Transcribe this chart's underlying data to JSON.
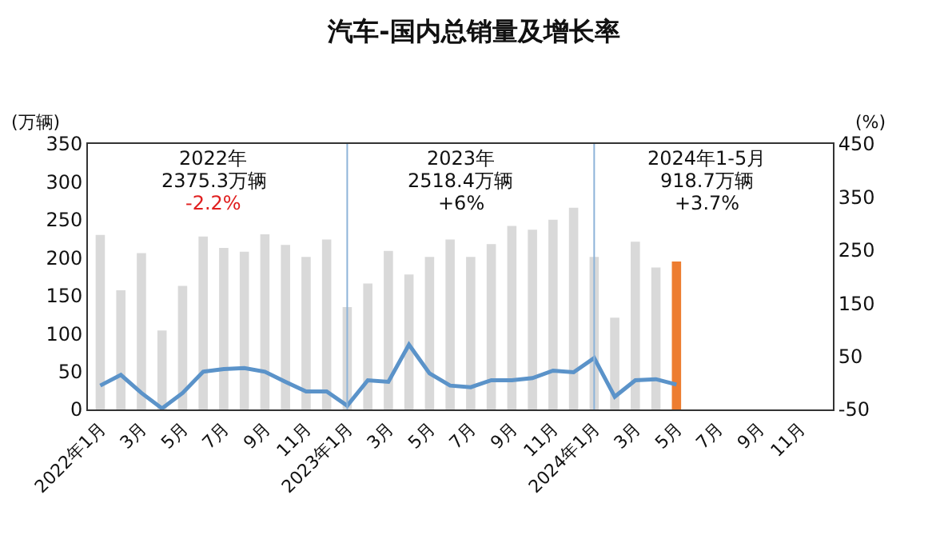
{
  "chart_data": {
    "type": "bar",
    "title": "汽车-国内总销量及增长率",
    "ylabel": "(万辆)",
    "y2label": "(%)",
    "categories": [
      "2022年1月",
      null,
      "3月",
      null,
      "5月",
      null,
      "7月",
      null,
      "9月",
      null,
      "11月",
      null,
      "2023年1月",
      null,
      "3月",
      null,
      "5月",
      null,
      "7月",
      null,
      "9月",
      null,
      "11月",
      null,
      "2024年1月",
      null,
      "3月",
      null,
      "5月",
      null,
      "7月",
      null,
      "9月",
      null,
      "11月",
      null
    ],
    "series": [
      {
        "colors": [
          "#d9d9d9",
          "#d9d9d9",
          "#d9d9d9",
          "#d9d9d9",
          "#d9d9d9",
          "#d9d9d9",
          "#d9d9d9",
          "#d9d9d9",
          "#d9d9d9",
          "#d9d9d9",
          "#d9d9d9",
          "#d9d9d9",
          "#d9d9d9",
          "#d9d9d9",
          "#d9d9d9",
          "#d9d9d9",
          "#d9d9d9",
          "#d9d9d9",
          "#d9d9d9",
          "#d9d9d9",
          "#d9d9d9",
          "#d9d9d9",
          "#d9d9d9",
          "#d9d9d9",
          "#d9d9d9",
          "#d9d9d9",
          "#d9d9d9",
          "#d9d9d9",
          "#ed7d31",
          null,
          null,
          null,
          null,
          null,
          null,
          null
        ],
        "values": [
          230,
          157,
          206,
          104,
          163,
          228,
          213,
          208,
          231,
          217,
          201,
          224,
          135,
          166,
          209,
          178,
          201,
          224,
          201,
          218,
          242,
          237,
          250,
          266,
          201,
          121,
          221,
          187,
          195,
          null,
          null,
          null,
          null,
          null,
          null,
          null
        ]
      },
      {
        "type": "line",
        "axis": "y2",
        "color": "#5b93c9",
        "values": [
          -5,
          15,
          -19,
          -48,
          -19,
          21,
          26,
          28,
          21,
          2,
          -16,
          -16,
          -43,
          5,
          2,
          72,
          18,
          -5,
          -8,
          5,
          5,
          9,
          23,
          20,
          47,
          -26,
          5,
          7,
          -3,
          null,
          null,
          null,
          null,
          null,
          null,
          null
        ]
      }
    ],
    "ylim": [
      0,
      350
    ],
    "yticks": [
      0,
      50,
      100,
      150,
      200,
      250,
      300,
      350
    ],
    "y2lim": [
      -50,
      450
    ],
    "y2ticks": [
      -50,
      50,
      150,
      250,
      350,
      450
    ],
    "ref_lines": [
      {
        "axis": "x",
        "value": "2023年1月",
        "color": "#8eb4d9"
      },
      {
        "axis": "x",
        "value": "2024年1月",
        "color": "#8eb4d9"
      }
    ],
    "annotations": [
      "2022年",
      "2375.3万辆",
      "-2.2%",
      "2023年",
      "2518.4万辆",
      "+6%",
      "2024年1-5月",
      "918.7万辆",
      "+3.7%"
    ],
    "grid": false,
    "legend": false,
    "line_style": "solid",
    "marker": "none"
  }
}
